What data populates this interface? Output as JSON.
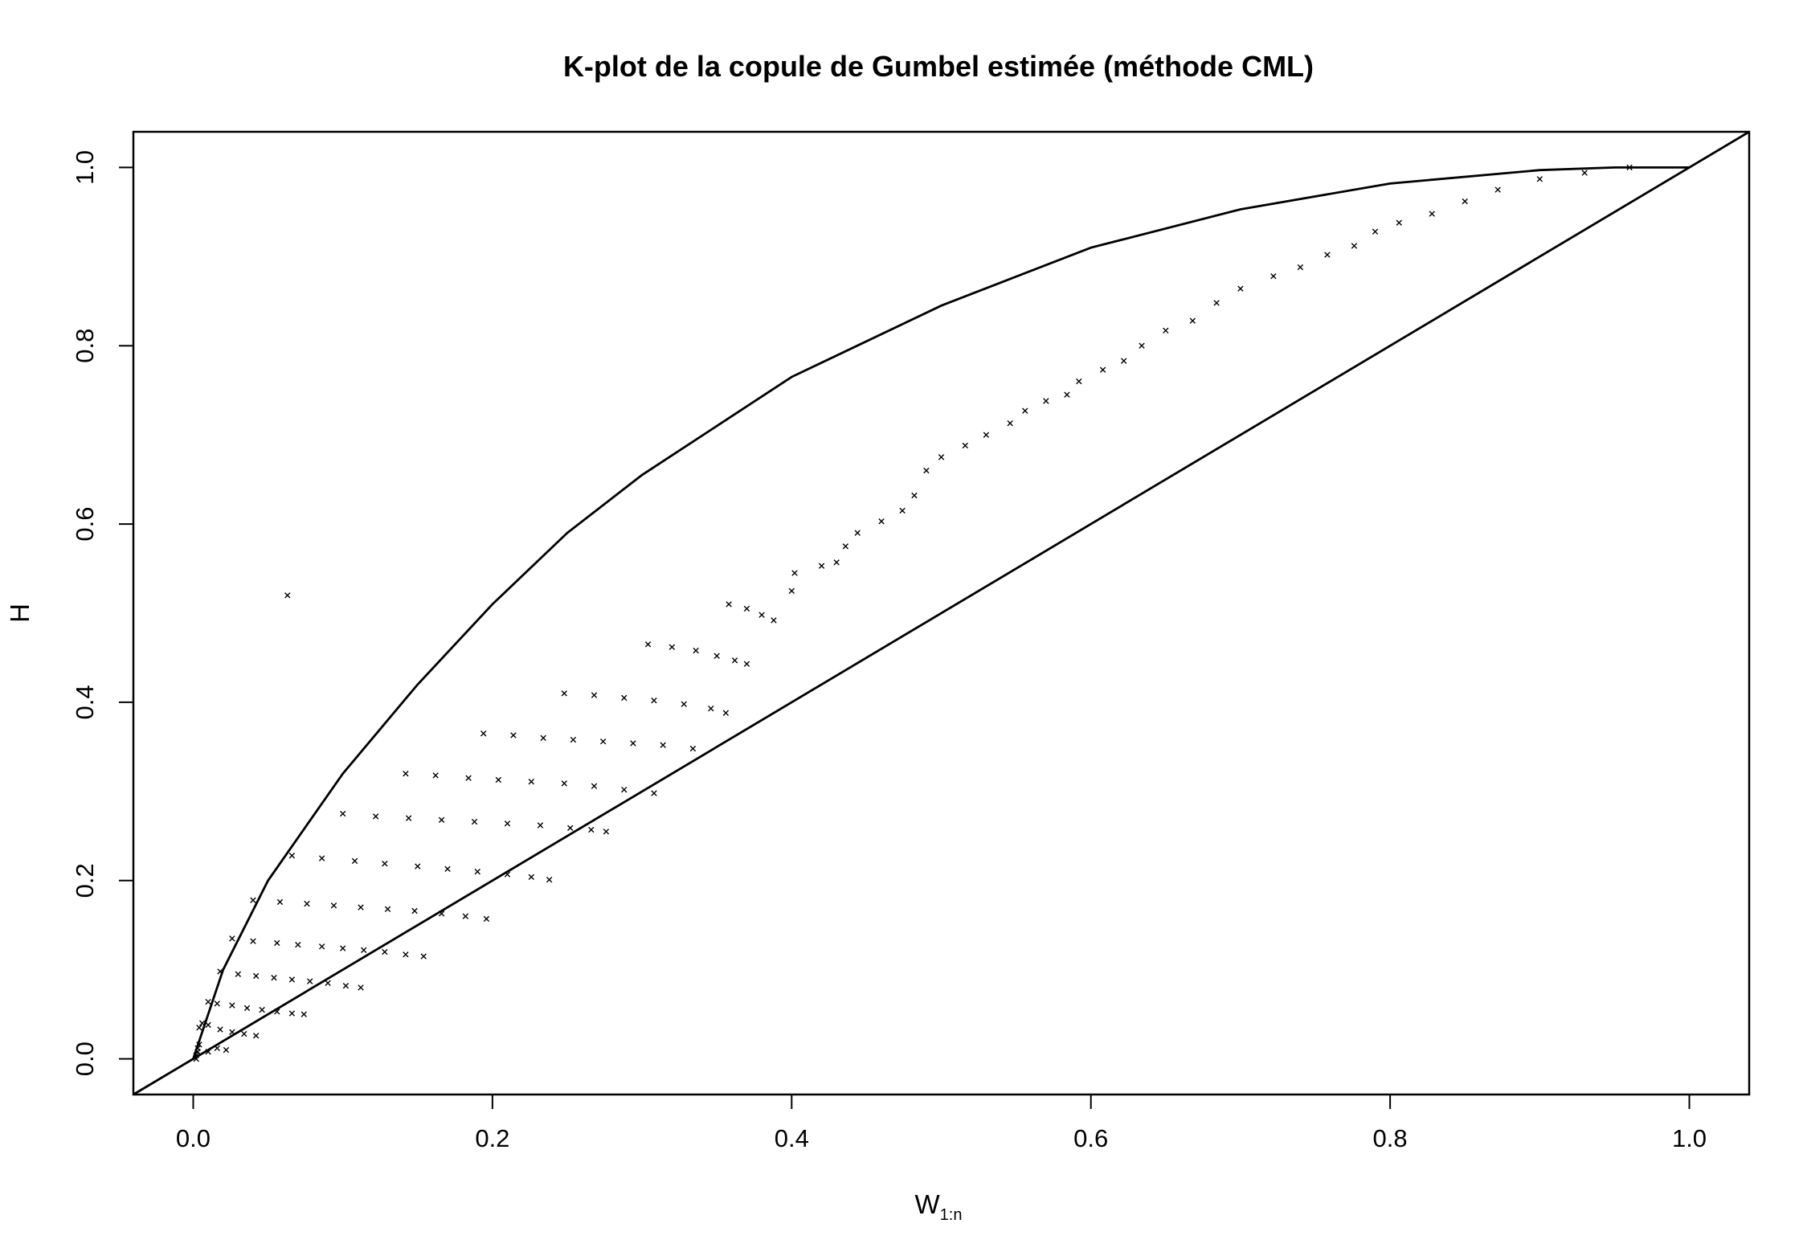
{
  "chart_data": {
    "type": "scatter",
    "title": "K-plot de la copule de Gumbel estimée (méthode CML)",
    "xlabel": "W",
    "xlabel_subscript": "1:n",
    "ylabel": "H",
    "xlim": [
      -0.04,
      1.04
    ],
    "ylim": [
      -0.04,
      1.04
    ],
    "x_ticks": [
      0.0,
      0.2,
      0.4,
      0.6,
      0.8,
      1.0
    ],
    "x_tick_labels": [
      "0.0",
      "0.2",
      "0.4",
      "0.6",
      "0.8",
      "1.0"
    ],
    "y_ticks": [
      0.0,
      0.2,
      0.4,
      0.6,
      0.8,
      1.0
    ],
    "y_tick_labels": [
      "0.0",
      "0.2",
      "0.4",
      "0.6",
      "0.8",
      "1.0"
    ],
    "grid": false,
    "legend": "none",
    "marker": "x",
    "color": "#000000",
    "reference_lines": [
      {
        "kind": "identity",
        "x": [
          -0.04,
          1.04
        ],
        "y": [
          -0.04,
          1.04
        ]
      },
      {
        "kind": "upper-bound-curve",
        "x": [
          0.0,
          0.02,
          0.05,
          0.1,
          0.15,
          0.2,
          0.25,
          0.3,
          0.35,
          0.4,
          0.5,
          0.6,
          0.7,
          0.8,
          0.9,
          0.95,
          1.0
        ],
        "y": [
          0.0,
          0.1,
          0.2,
          0.32,
          0.42,
          0.51,
          0.59,
          0.655,
          0.71,
          0.765,
          0.845,
          0.91,
          0.953,
          0.982,
          0.997,
          1.0,
          1.0
        ]
      }
    ],
    "points": [
      [
        0.002,
        0.0
      ],
      [
        0.002,
        0.004
      ],
      [
        0.003,
        0.008
      ],
      [
        0.003,
        0.012
      ],
      [
        0.004,
        0.016
      ],
      [
        0.01,
        0.008
      ],
      [
        0.016,
        0.012
      ],
      [
        0.022,
        0.01
      ],
      [
        0.004,
        0.035
      ],
      [
        0.006,
        0.04
      ],
      [
        0.01,
        0.038
      ],
      [
        0.018,
        0.033
      ],
      [
        0.026,
        0.03
      ],
      [
        0.034,
        0.028
      ],
      [
        0.042,
        0.026
      ],
      [
        0.01,
        0.064
      ],
      [
        0.016,
        0.062
      ],
      [
        0.026,
        0.06
      ],
      [
        0.036,
        0.057
      ],
      [
        0.046,
        0.055
      ],
      [
        0.056,
        0.053
      ],
      [
        0.066,
        0.051
      ],
      [
        0.074,
        0.05
      ],
      [
        0.018,
        0.098
      ],
      [
        0.03,
        0.095
      ],
      [
        0.042,
        0.093
      ],
      [
        0.054,
        0.091
      ],
      [
        0.066,
        0.089
      ],
      [
        0.078,
        0.087
      ],
      [
        0.09,
        0.085
      ],
      [
        0.102,
        0.082
      ],
      [
        0.112,
        0.08
      ],
      [
        0.026,
        0.135
      ],
      [
        0.04,
        0.132
      ],
      [
        0.056,
        0.13
      ],
      [
        0.07,
        0.128
      ],
      [
        0.086,
        0.126
      ],
      [
        0.1,
        0.124
      ],
      [
        0.114,
        0.122
      ],
      [
        0.128,
        0.12
      ],
      [
        0.142,
        0.117
      ],
      [
        0.154,
        0.115
      ],
      [
        0.04,
        0.178
      ],
      [
        0.058,
        0.176
      ],
      [
        0.076,
        0.174
      ],
      [
        0.094,
        0.172
      ],
      [
        0.112,
        0.17
      ],
      [
        0.13,
        0.168
      ],
      [
        0.148,
        0.166
      ],
      [
        0.166,
        0.163
      ],
      [
        0.182,
        0.16
      ],
      [
        0.196,
        0.157
      ],
      [
        0.066,
        0.228
      ],
      [
        0.086,
        0.225
      ],
      [
        0.108,
        0.222
      ],
      [
        0.128,
        0.219
      ],
      [
        0.15,
        0.216
      ],
      [
        0.17,
        0.213
      ],
      [
        0.19,
        0.21
      ],
      [
        0.21,
        0.207
      ],
      [
        0.226,
        0.204
      ],
      [
        0.238,
        0.201
      ],
      [
        0.1,
        0.275
      ],
      [
        0.122,
        0.272
      ],
      [
        0.144,
        0.27
      ],
      [
        0.166,
        0.268
      ],
      [
        0.188,
        0.266
      ],
      [
        0.21,
        0.264
      ],
      [
        0.232,
        0.262
      ],
      [
        0.252,
        0.259
      ],
      [
        0.266,
        0.257
      ],
      [
        0.276,
        0.255
      ],
      [
        0.142,
        0.32
      ],
      [
        0.162,
        0.318
      ],
      [
        0.184,
        0.315
      ],
      [
        0.204,
        0.313
      ],
      [
        0.226,
        0.311
      ],
      [
        0.248,
        0.309
      ],
      [
        0.268,
        0.306
      ],
      [
        0.288,
        0.302
      ],
      [
        0.308,
        0.298
      ],
      [
        0.194,
        0.365
      ],
      [
        0.214,
        0.363
      ],
      [
        0.234,
        0.36
      ],
      [
        0.254,
        0.358
      ],
      [
        0.274,
        0.356
      ],
      [
        0.294,
        0.354
      ],
      [
        0.314,
        0.352
      ],
      [
        0.334,
        0.348
      ],
      [
        0.248,
        0.41
      ],
      [
        0.268,
        0.408
      ],
      [
        0.288,
        0.405
      ],
      [
        0.308,
        0.402
      ],
      [
        0.328,
        0.398
      ],
      [
        0.346,
        0.393
      ],
      [
        0.356,
        0.388
      ],
      [
        0.304,
        0.465
      ],
      [
        0.32,
        0.462
      ],
      [
        0.336,
        0.458
      ],
      [
        0.35,
        0.452
      ],
      [
        0.362,
        0.447
      ],
      [
        0.37,
        0.443
      ],
      [
        0.358,
        0.51
      ],
      [
        0.37,
        0.505
      ],
      [
        0.38,
        0.498
      ],
      [
        0.388,
        0.492
      ],
      [
        0.4,
        0.525
      ],
      [
        0.402,
        0.545
      ],
      [
        0.42,
        0.553
      ],
      [
        0.43,
        0.557
      ],
      [
        0.436,
        0.575
      ],
      [
        0.444,
        0.59
      ],
      [
        0.46,
        0.603
      ],
      [
        0.474,
        0.615
      ],
      [
        0.482,
        0.632
      ],
      [
        0.49,
        0.66
      ],
      [
        0.5,
        0.675
      ],
      [
        0.516,
        0.688
      ],
      [
        0.53,
        0.7
      ],
      [
        0.546,
        0.713
      ],
      [
        0.556,
        0.727
      ],
      [
        0.57,
        0.738
      ],
      [
        0.584,
        0.745
      ],
      [
        0.592,
        0.76
      ],
      [
        0.608,
        0.773
      ],
      [
        0.622,
        0.783
      ],
      [
        0.634,
        0.8
      ],
      [
        0.65,
        0.817
      ],
      [
        0.668,
        0.828
      ],
      [
        0.684,
        0.848
      ],
      [
        0.7,
        0.864
      ],
      [
        0.722,
        0.878
      ],
      [
        0.74,
        0.888
      ],
      [
        0.758,
        0.902
      ],
      [
        0.776,
        0.912
      ],
      [
        0.79,
        0.928
      ],
      [
        0.806,
        0.938
      ],
      [
        0.828,
        0.948
      ],
      [
        0.85,
        0.962
      ],
      [
        0.872,
        0.975
      ],
      [
        0.9,
        0.987
      ],
      [
        0.93,
        0.994
      ],
      [
        0.96,
        1.0
      ],
      [
        0.063,
        0.52
      ]
    ]
  }
}
